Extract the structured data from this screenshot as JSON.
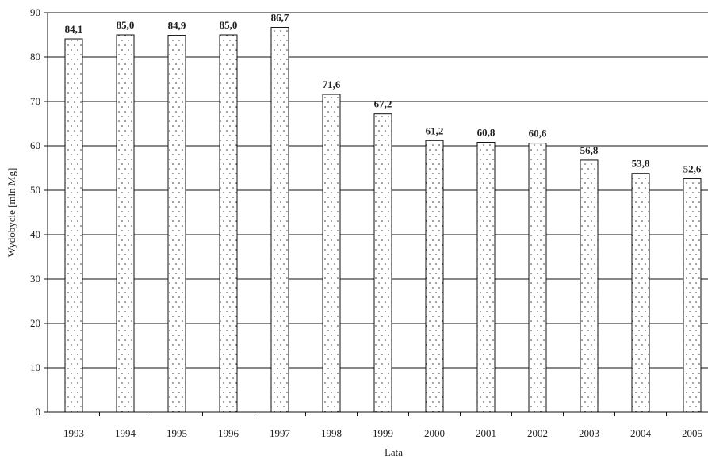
{
  "chart_data": {
    "type": "bar",
    "categories": [
      "1993",
      "1994",
      "1995",
      "1996",
      "1997",
      "1998",
      "1999",
      "2000",
      "2001",
      "2002",
      "2003",
      "2004",
      "2005"
    ],
    "values": [
      84.1,
      85.0,
      84.9,
      85.0,
      86.7,
      71.6,
      67.2,
      61.2,
      60.8,
      60.6,
      56.8,
      53.8,
      52.6
    ],
    "value_labels": [
      "84,1",
      "85,0",
      "84,9",
      "85,0",
      "86,7",
      "71,6",
      "67,2",
      "61,2",
      "60,8",
      "60,6",
      "56,8",
      "53,8",
      "52,6"
    ],
    "title": "",
    "xlabel": "Lata",
    "ylabel": "Wydobycie [mln Mg]",
    "ylim": [
      0,
      90
    ],
    "yticks": [
      0,
      10,
      20,
      30,
      40,
      50,
      60,
      70,
      80,
      90
    ],
    "grid": true,
    "bar_fill": "dotted",
    "colors": {
      "grid": "#111111",
      "bar_stroke": "#111111",
      "bar_fill": "#ffffff",
      "dots": "#333333"
    }
  }
}
